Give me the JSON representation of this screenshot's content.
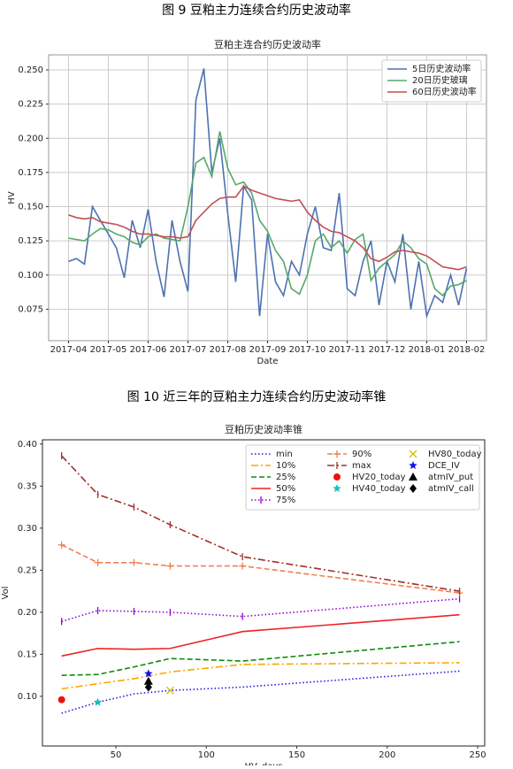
{
  "captions": [
    "图 9  豆粕主力连续合约历史波动率",
    "图 10  近三年的豆粕主力连续合约历史波动率锥"
  ],
  "chart_data": [
    {
      "type": "line",
      "title": "豆粕主连合约历史波动率",
      "x_label": "Date",
      "y_label": "HV",
      "grid": true,
      "legend": "upper right",
      "legend_columns": 1,
      "categories": [
        "2017-04",
        null,
        null,
        null,
        null,
        "2017-05",
        null,
        null,
        null,
        null,
        "2017-06",
        null,
        null,
        null,
        null,
        "2017-07",
        null,
        null,
        null,
        null,
        "2017-08",
        null,
        null,
        null,
        null,
        "2017-09",
        null,
        null,
        null,
        null,
        "2017-10",
        null,
        null,
        null,
        null,
        "2017-11",
        null,
        null,
        null,
        null,
        "2017-12",
        null,
        null,
        null,
        null,
        "2018-01",
        null,
        null,
        null,
        null,
        "2018-02"
      ],
      "ylim": [
        0.052,
        0.261
      ],
      "yticks": [
        {
          "value": 0.075,
          "label": "0.075"
        },
        {
          "value": 0.1,
          "label": "0.100"
        },
        {
          "value": 0.125,
          "label": "0.125"
        },
        {
          "value": 0.15,
          "label": "0.150"
        },
        {
          "value": 0.175,
          "label": "0.175"
        },
        {
          "value": 0.2,
          "label": "0.200"
        },
        {
          "value": 0.225,
          "label": "0.225"
        },
        {
          "value": 0.25,
          "label": "0.250"
        }
      ],
      "series": [
        {
          "name": "5日历史波动率",
          "color": "#4c72b0",
          "values": [
            0.11,
            0.112,
            0.108,
            0.15,
            0.14,
            0.13,
            0.12,
            0.098,
            0.14,
            0.12,
            0.148,
            0.11,
            0.084,
            0.14,
            0.11,
            0.088,
            0.228,
            0.251,
            0.175,
            0.2,
            0.145,
            0.095,
            0.165,
            0.155,
            0.07,
            0.13,
            0.095,
            0.085,
            0.11,
            0.1,
            0.13,
            0.15,
            0.12,
            0.118,
            0.16,
            0.09,
            0.085,
            0.11,
            0.125,
            0.078,
            0.11,
            0.095,
            0.13,
            0.075,
            0.11,
            0.07,
            0.085,
            0.08,
            0.1,
            0.078,
            0.105
          ]
        },
        {
          "name": "20日历史玻璃",
          "color": "#55a868",
          "values": [
            0.127,
            0.126,
            0.125,
            0.13,
            0.134,
            0.133,
            0.13,
            0.128,
            0.124,
            0.122,
            0.128,
            0.13,
            0.127,
            0.126,
            0.125,
            0.15,
            0.182,
            0.186,
            0.172,
            0.205,
            0.178,
            0.166,
            0.168,
            0.16,
            0.14,
            0.132,
            0.118,
            0.11,
            0.09,
            0.086,
            0.1,
            0.125,
            0.13,
            0.12,
            0.125,
            0.116,
            0.126,
            0.13,
            0.096,
            0.105,
            0.11,
            0.115,
            0.125,
            0.12,
            0.112,
            0.108,
            0.09,
            0.085,
            0.092,
            0.093,
            0.096
          ]
        },
        {
          "name": "60日历史波动率",
          "color": "#c44e52",
          "values": [
            0.144,
            0.142,
            0.141,
            0.142,
            0.139,
            0.138,
            0.137,
            0.135,
            0.132,
            0.13,
            0.13,
            0.129,
            0.128,
            0.128,
            0.127,
            0.128,
            0.14,
            0.146,
            0.152,
            0.156,
            0.157,
            0.157,
            0.165,
            0.162,
            0.16,
            0.158,
            0.156,
            0.155,
            0.154,
            0.155,
            0.146,
            0.14,
            0.135,
            0.132,
            0.131,
            0.128,
            0.125,
            0.12,
            0.112,
            0.11,
            0.113,
            0.117,
            0.118,
            0.117,
            0.116,
            0.114,
            0.11,
            0.106,
            0.105,
            0.104,
            0.106
          ]
        }
      ]
    },
    {
      "type": "line",
      "title": "豆粕历史波动率锥",
      "x_label": "HV_days",
      "y_label": "Vol",
      "grid": false,
      "legend": "upper right",
      "legend_columns": 3,
      "x": [
        20,
        40,
        60,
        80,
        120,
        240
      ],
      "xlim": [
        9.4,
        253.9
      ],
      "xticks": [
        50,
        100,
        150,
        200,
        250
      ],
      "ylim": [
        0.041,
        0.405
      ],
      "yticks": [
        {
          "value": 0.1,
          "label": "0.10"
        },
        {
          "value": 0.15,
          "label": "0.15"
        },
        {
          "value": 0.2,
          "label": "0.20"
        },
        {
          "value": 0.25,
          "label": "0.25"
        },
        {
          "value": 0.3,
          "label": "0.30"
        },
        {
          "value": 0.35,
          "label": "0.35"
        },
        {
          "value": 0.4,
          "label": "0.40"
        }
      ],
      "series": [
        {
          "name": "min",
          "color": "#1f1fe0",
          "style": "dotted",
          "values": [
            0.08,
            0.093,
            0.103,
            0.107,
            0.111,
            0.13
          ]
        },
        {
          "name": "10%",
          "color": "#ffa500",
          "style": "dashdot",
          "values": [
            0.109,
            0.115,
            0.121,
            0.129,
            0.138,
            0.14
          ]
        },
        {
          "name": "25%",
          "color": "#118811",
          "style": "dashed",
          "values": [
            0.125,
            0.126,
            0.135,
            0.145,
            0.142,
            0.165
          ]
        },
        {
          "name": "50%",
          "color": "#ee2222",
          "style": "solid",
          "values": [
            0.148,
            0.157,
            0.156,
            0.157,
            0.177,
            0.197
          ]
        },
        {
          "name": "75%",
          "color": "#9400d3",
          "style": "dotted",
          "marker": "|",
          "values": [
            0.189,
            0.202,
            0.201,
            0.2,
            0.195,
            0.216
          ]
        },
        {
          "name": "90%",
          "color": "#f08050",
          "style": "dashed",
          "marker": "+",
          "values": [
            0.28,
            0.259,
            0.259,
            0.255,
            0.255,
            0.223
          ]
        },
        {
          "name": "max",
          "color": "#a0302a",
          "style": "dashdot",
          "marker": "|",
          "values": [
            0.386,
            0.34,
            0.325,
            0.304,
            0.266,
            0.225
          ]
        }
      ],
      "points": [
        {
          "name": "HV20_today",
          "color": "#ee1111",
          "marker": "o",
          "x": 20,
          "y": 0.096
        },
        {
          "name": "HV40_today",
          "color": "#17bfbf",
          "marker": "*",
          "x": 40,
          "y": 0.093
        },
        {
          "name": "HV80_today",
          "color": "#d4c000",
          "marker": "x",
          "x": 80,
          "y": 0.107
        },
        {
          "name": "DCE_IV",
          "color": "#1010ee",
          "marker": "*",
          "x": 68,
          "y": 0.127
        },
        {
          "name": "atmIV_put",
          "color": "#000000",
          "marker": "^",
          "x": 68,
          "y": 0.118
        },
        {
          "name": "atmIV_call",
          "color": "#000000",
          "marker": "D",
          "x": 68,
          "y": 0.111
        }
      ]
    }
  ]
}
